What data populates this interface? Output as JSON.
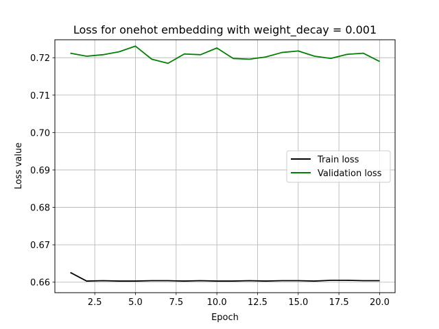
{
  "chart_data": {
    "type": "line",
    "title": "Loss for onehot embedding with weight_decay = 0.001",
    "xlabel": "Epoch",
    "ylabel": "Loss value",
    "xlim": [
      0.05,
      20.95
    ],
    "ylim": [
      0.6572,
      0.7248
    ],
    "x_ticks": [
      2.5,
      5.0,
      7.5,
      10.0,
      12.5,
      15.0,
      17.5,
      20.0
    ],
    "x_tick_labels": [
      "2.5",
      "5.0",
      "7.5",
      "10.0",
      "12.5",
      "15.0",
      "17.5",
      "20.0"
    ],
    "y_ticks": [
      0.66,
      0.67,
      0.68,
      0.69,
      0.7,
      0.71,
      0.72
    ],
    "y_tick_labels": [
      "0.66",
      "0.67",
      "0.68",
      "0.69",
      "0.70",
      "0.71",
      "0.72"
    ],
    "grid": true,
    "legend_position": "center-right",
    "x": [
      1,
      2,
      3,
      4,
      5,
      6,
      7,
      8,
      9,
      10,
      11,
      12,
      13,
      14,
      15,
      16,
      17,
      18,
      19,
      20
    ],
    "series": [
      {
        "name": "Train loss",
        "color": "#000000",
        "values": [
          0.6626,
          0.6603,
          0.6604,
          0.6603,
          0.6603,
          0.6604,
          0.6604,
          0.6603,
          0.6604,
          0.6603,
          0.6603,
          0.6604,
          0.6603,
          0.6604,
          0.6604,
          0.6603,
          0.6605,
          0.6605,
          0.6604,
          0.6604
        ]
      },
      {
        "name": "Validation loss",
        "color": "#008000",
        "values": [
          0.7212,
          0.7204,
          0.7208,
          0.7216,
          0.7231,
          0.7196,
          0.7185,
          0.721,
          0.7208,
          0.7226,
          0.7198,
          0.7196,
          0.7202,
          0.7214,
          0.7218,
          0.7204,
          0.7198,
          0.7209,
          0.7212,
          0.719
        ]
      }
    ]
  }
}
